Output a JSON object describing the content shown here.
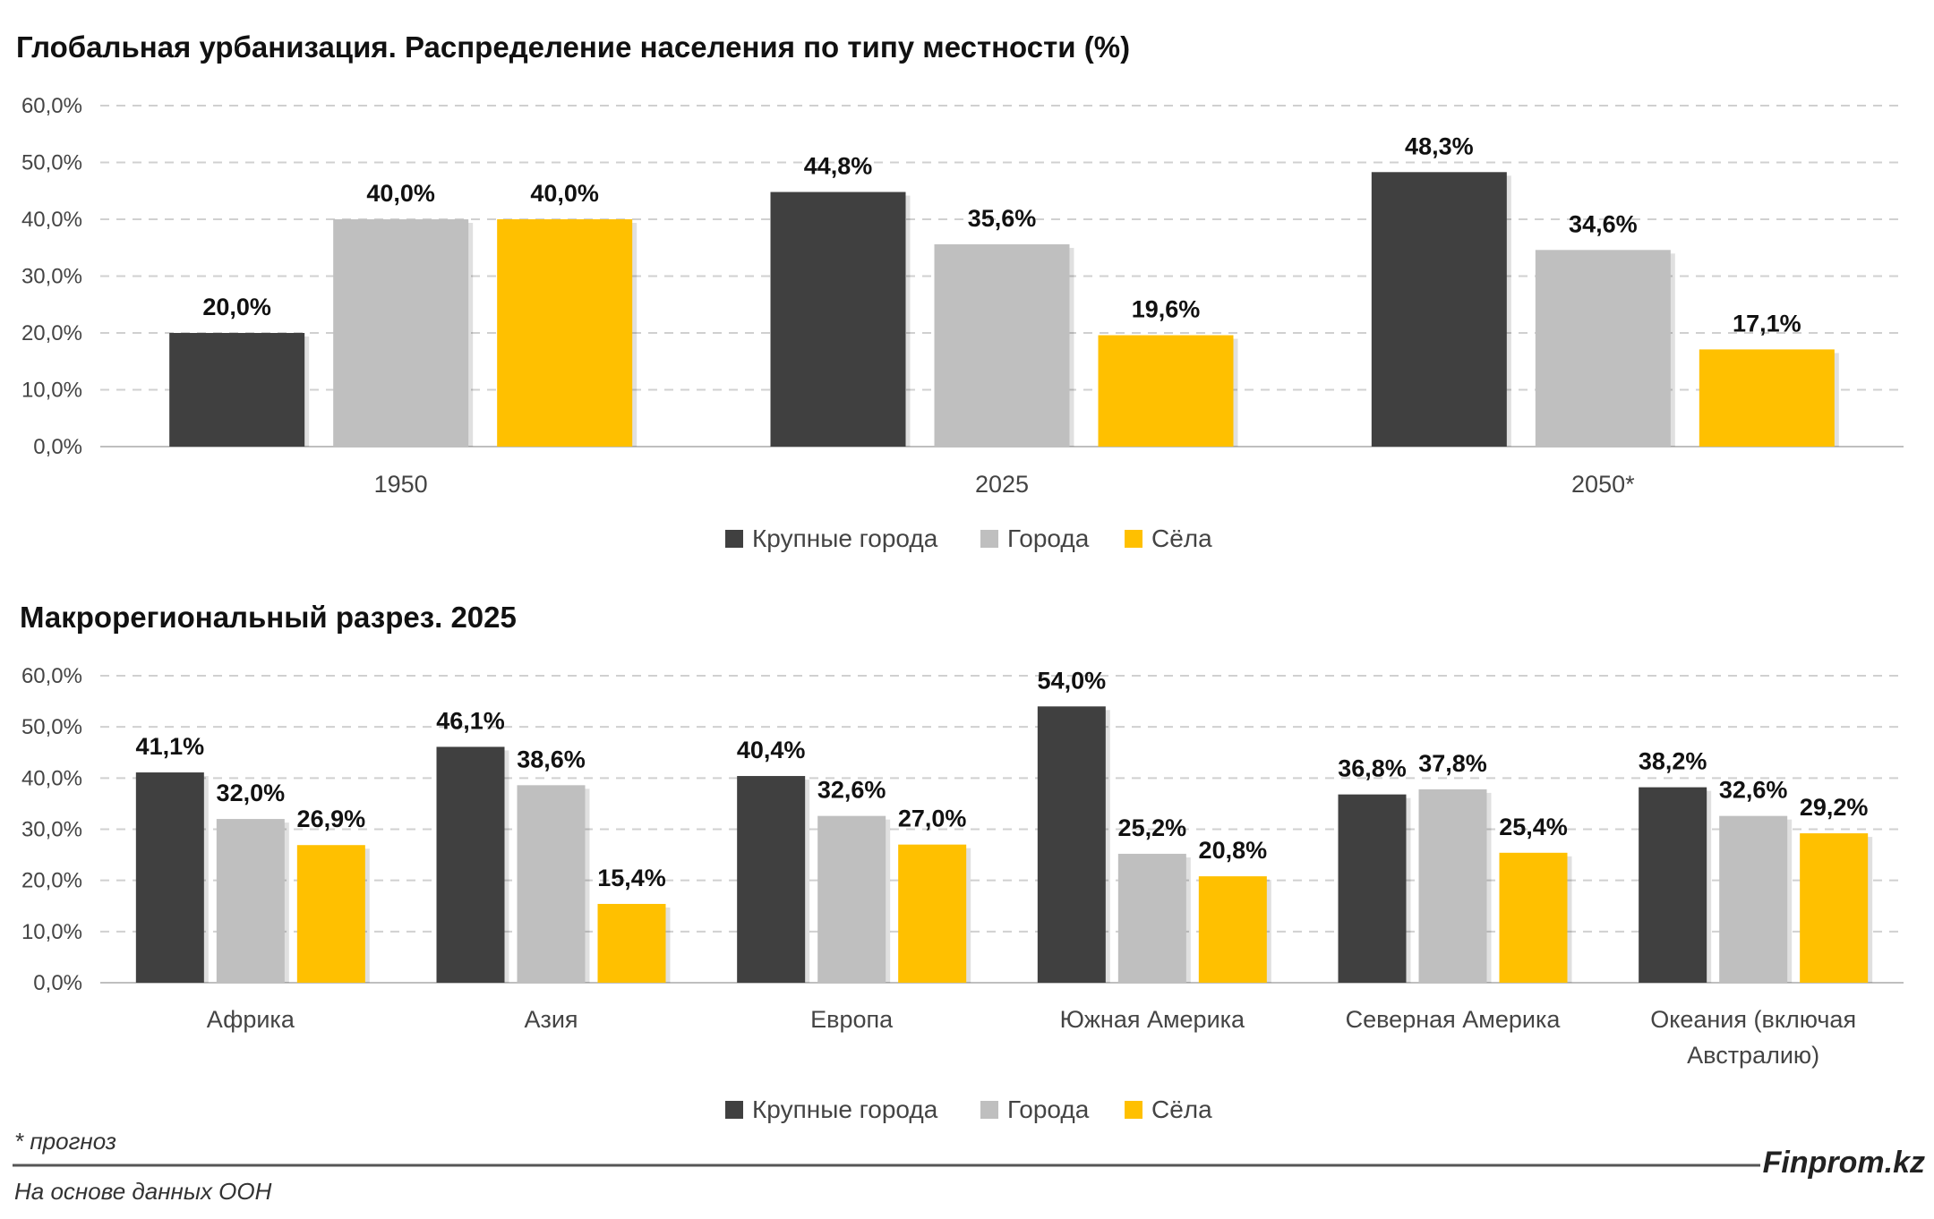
{
  "colors": {
    "large_cities": "#404040",
    "cities": "#bfbfbf",
    "villages": "#ffc000"
  },
  "chart_data": [
    {
      "type": "bar",
      "title": "Глобальная урбанизация. Распределение населения по типу местности (%)",
      "categories": [
        "1950",
        "2025",
        "2050*"
      ],
      "ylim": [
        0,
        60
      ],
      "yticks": [
        "0,0%",
        "10,0%",
        "20,0%",
        "30,0%",
        "40,0%",
        "50,0%",
        "60,0%"
      ],
      "grid": true,
      "legend": "bottom-center",
      "series": [
        {
          "name": "Крупные города",
          "values": [
            20.0,
            44.8,
            48.3
          ],
          "labels": [
            "20,0%",
            "44,8%",
            "48,3%"
          ]
        },
        {
          "name": "Города",
          "values": [
            40.0,
            35.6,
            34.6
          ],
          "labels": [
            "40,0%",
            "35,6%",
            "34,6%"
          ]
        },
        {
          "name": "Сёла",
          "values": [
            40.0,
            19.6,
            17.1
          ],
          "labels": [
            "40,0%",
            "19,6%",
            "17,1%"
          ]
        }
      ]
    },
    {
      "type": "bar",
      "title": "Макрорегиональный разрез. 2025",
      "categories": [
        "Африка",
        "Азия",
        "Европа",
        "Южная Америка",
        "Северная Америка",
        "Океания (включая Австралию)"
      ],
      "category_lines": [
        [
          "Африка"
        ],
        [
          "Азия"
        ],
        [
          "Европа"
        ],
        [
          "Южная Америка"
        ],
        [
          "Северная Америка"
        ],
        [
          "Океания (включая",
          "Австралию)"
        ]
      ],
      "ylim": [
        0,
        60
      ],
      "yticks": [
        "0,0%",
        "10,0%",
        "20,0%",
        "30,0%",
        "40,0%",
        "50,0%",
        "60,0%"
      ],
      "grid": true,
      "legend": "bottom-center",
      "series": [
        {
          "name": "Крупные города",
          "values": [
            41.1,
            46.1,
            40.4,
            54.0,
            36.8,
            38.2
          ],
          "labels": [
            "41,1%",
            "46,1%",
            "40,4%",
            "54,0%",
            "36,8%",
            "38,2%"
          ]
        },
        {
          "name": "Города",
          "values": [
            32.0,
            38.6,
            32.6,
            25.2,
            37.8,
            32.6
          ],
          "labels": [
            "32,0%",
            "38,6%",
            "32,6%",
            "25,2%",
            "37,8%",
            "32,6%"
          ]
        },
        {
          "name": "Сёла",
          "values": [
            26.9,
            15.4,
            27.0,
            20.8,
            25.4,
            29.2
          ],
          "labels": [
            "26,9%",
            "15,4%",
            "27,0%",
            "20,8%",
            "25,4%",
            "29,2%"
          ]
        }
      ]
    }
  ],
  "footer": {
    "forecast_note": "* прогноз",
    "source": "На основе данных ООН",
    "brand": "Finprom.kz"
  }
}
